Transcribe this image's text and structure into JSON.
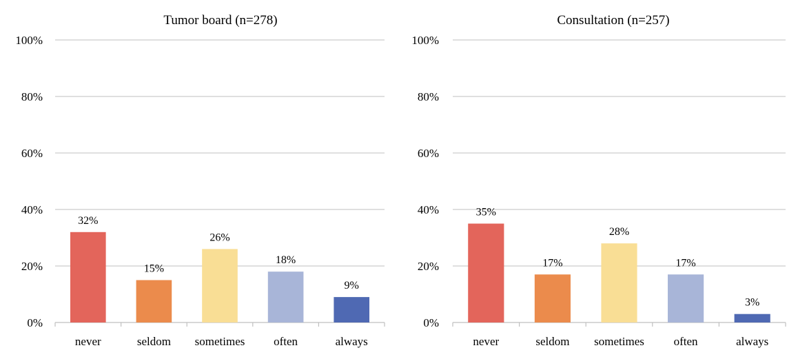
{
  "chart_data": [
    {
      "type": "bar",
      "title": "Tumor board (n=278)",
      "xlabel": "",
      "ylabel": "",
      "categories": [
        "never",
        "seldom",
        "sometimes",
        "often",
        "always"
      ],
      "values": [
        32,
        15,
        26,
        18,
        9
      ],
      "data_labels": [
        "32%",
        "15%",
        "26%",
        "18%",
        "9%"
      ],
      "ylim": [
        0,
        100
      ],
      "yticks": [
        0,
        20,
        40,
        60,
        80,
        100
      ],
      "ytick_labels": [
        "0%",
        "20%",
        "40%",
        "60%",
        "80%",
        "100%"
      ],
      "grid": true,
      "legend": "none",
      "colors": [
        "#e3655b",
        "#eb8b4c",
        "#f9de95",
        "#a8b5d8",
        "#4f69b3"
      ]
    },
    {
      "type": "bar",
      "title": "Consultation (n=257)",
      "xlabel": "",
      "ylabel": "",
      "categories": [
        "never",
        "seldom",
        "sometimes",
        "often",
        "always"
      ],
      "values": [
        35,
        17,
        28,
        17,
        3
      ],
      "data_labels": [
        "35%",
        "17%",
        "28%",
        "17%",
        "3%"
      ],
      "ylim": [
        0,
        100
      ],
      "yticks": [
        0,
        20,
        40,
        60,
        80,
        100
      ],
      "ytick_labels": [
        "0%",
        "20%",
        "40%",
        "60%",
        "80%",
        "100%"
      ],
      "grid": true,
      "legend": "none",
      "colors": [
        "#e3655b",
        "#eb8b4c",
        "#f9de95",
        "#a8b5d8",
        "#4f69b3"
      ]
    }
  ]
}
